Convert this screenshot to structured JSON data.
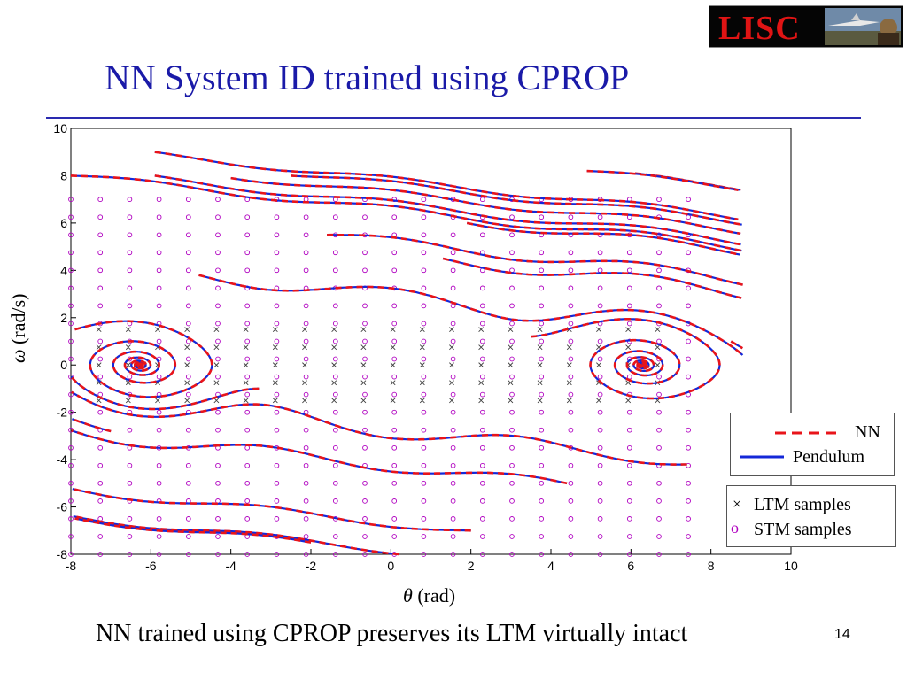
{
  "slide": {
    "title": "NN System ID trained using CPROP",
    "caption": "NN trained using CPROP preserves its LTM virtually intact",
    "page_number": "14",
    "logo_text": "LISC"
  },
  "chart_data": {
    "type": "line",
    "xlabel_symbol": "θ",
    "xlabel_unit": "(rad)",
    "ylabel_symbol": "ω",
    "ylabel_unit": "(rad/s)",
    "xlim": [
      -8,
      10
    ],
    "ylim": [
      -8,
      10
    ],
    "x_ticks": [
      "-8",
      "-6",
      "-4",
      "-2",
      "0",
      "2",
      "4",
      "6",
      "8",
      "10"
    ],
    "y_ticks": [
      "-8",
      "-6",
      "-4",
      "-2",
      "0",
      "2",
      "4",
      "6",
      "8",
      "10"
    ],
    "grid": false,
    "series": [
      {
        "name": "NN",
        "style": "dashed",
        "color": "#e8141a"
      },
      {
        "name": "Pendulum",
        "style": "solid",
        "color": "#1428d8"
      }
    ],
    "samples": [
      {
        "name": "LTM samples",
        "marker": "×",
        "color": "#404040",
        "x_range": [
          -7.3,
          7.3
        ],
        "y_range": [
          -1.5,
          1.5
        ]
      },
      {
        "name": "STM samples",
        "marker": "o",
        "color": "#b000c0",
        "x_range": [
          -8,
          8
        ],
        "y_range": [
          -8,
          8
        ]
      }
    ],
    "stable_foci": [
      [
        -6.28,
        0
      ],
      [
        0,
        0
      ],
      [
        6.28,
        0
      ]
    ],
    "saddle_points": [
      [
        -3.14,
        0
      ],
      [
        3.14,
        0
      ]
    ]
  },
  "colors": {
    "title": "#1a1aa8",
    "nn": "#e8141a",
    "pendulum": "#1428d8",
    "ltm": "#404040",
    "stm": "#b000c0"
  }
}
